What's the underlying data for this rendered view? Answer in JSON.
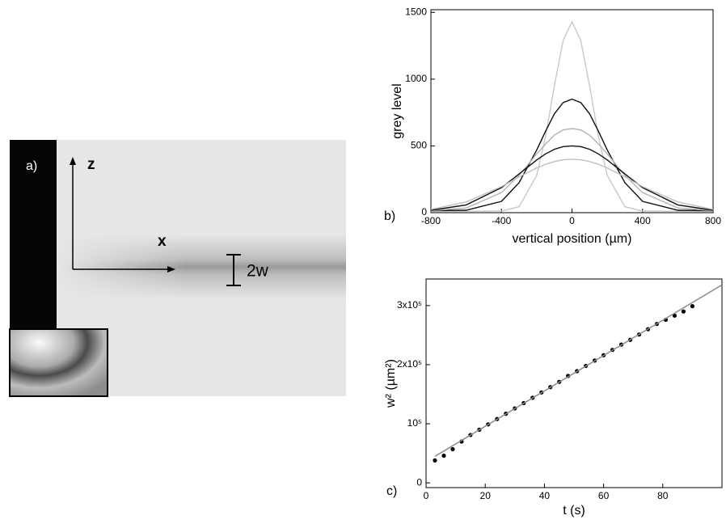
{
  "panel_a": {
    "label": "a)",
    "z_label": "z",
    "x_label": "x",
    "width_label": "2w"
  },
  "chart_data": [
    {
      "type": "line",
      "panel_label": "b)",
      "xlabel": "vertical position (µm)",
      "ylabel": "grey level",
      "x": [
        -800,
        -600,
        -400,
        -300,
        -200,
        -150,
        -100,
        -50,
        0,
        50,
        100,
        150,
        200,
        300,
        400,
        600,
        800
      ],
      "series": [
        {
          "color": "#c8c8c8",
          "values": [
            10,
            10,
            12,
            45,
            280,
            570,
            950,
            1290,
            1430,
            1290,
            950,
            570,
            280,
            45,
            12,
            10,
            10
          ]
        },
        {
          "color": "#111111",
          "values": [
            15,
            18,
            85,
            225,
            470,
            610,
            740,
            825,
            850,
            825,
            740,
            610,
            470,
            225,
            85,
            18,
            15
          ]
        },
        {
          "color": "#b4b4b4",
          "values": [
            15,
            35,
            150,
            280,
            440,
            515,
            580,
            620,
            630,
            620,
            580,
            515,
            440,
            280,
            150,
            35,
            15
          ]
        },
        {
          "color": "#111111",
          "values": [
            18,
            58,
            188,
            290,
            395,
            440,
            475,
            495,
            500,
            495,
            475,
            440,
            395,
            290,
            188,
            58,
            18
          ]
        },
        {
          "color": "#c0c0c0",
          "values": [
            25,
            80,
            195,
            268,
            335,
            362,
            383,
            396,
            400,
            396,
            383,
            362,
            335,
            268,
            195,
            80,
            25
          ]
        }
      ],
      "xlim": [
        -800,
        800
      ],
      "ylim": [
        0,
        1520
      ],
      "xticks": [
        -800,
        -400,
        0,
        400,
        800
      ],
      "yticks": [
        0,
        500,
        1000,
        1500
      ]
    },
    {
      "type": "scatter",
      "panel_label": "c)",
      "xlabel": "t (s)",
      "ylabel": "w² (µm²)",
      "series": [
        {
          "color": "#000000",
          "mode": "markers",
          "x": [
            3,
            6,
            9,
            12,
            15,
            18,
            21,
            24,
            27,
            30,
            33,
            36,
            39,
            42,
            45,
            48,
            51,
            54,
            57,
            60,
            63,
            66,
            69,
            72,
            75,
            78,
            81,
            84,
            87,
            90
          ],
          "values": [
            38000,
            46000,
            57000,
            70000,
            81000,
            90000,
            99000,
            108000,
            117000,
            126000,
            135000,
            144000,
            153000,
            162000,
            171000,
            181000,
            189000,
            198000,
            207000,
            216000,
            225000,
            234000,
            242000,
            251000,
            260000,
            269000,
            276000,
            283000,
            290000,
            299000
          ]
        },
        {
          "color": "#8c8c8c",
          "mode": "line",
          "x": [
            3,
            100
          ],
          "values": [
            45000,
            335000
          ]
        }
      ],
      "xlim": [
        0,
        100
      ],
      "ylim": [
        -8000,
        345000
      ],
      "xticks": [
        0,
        20,
        40,
        60,
        80
      ],
      "yticks": [
        0,
        {
          "value": 100000,
          "label": "10⁵"
        },
        {
          "value": 200000,
          "label": "2x10⁵"
        },
        {
          "value": 300000,
          "label": "3x10⁵"
        }
      ]
    }
  ]
}
